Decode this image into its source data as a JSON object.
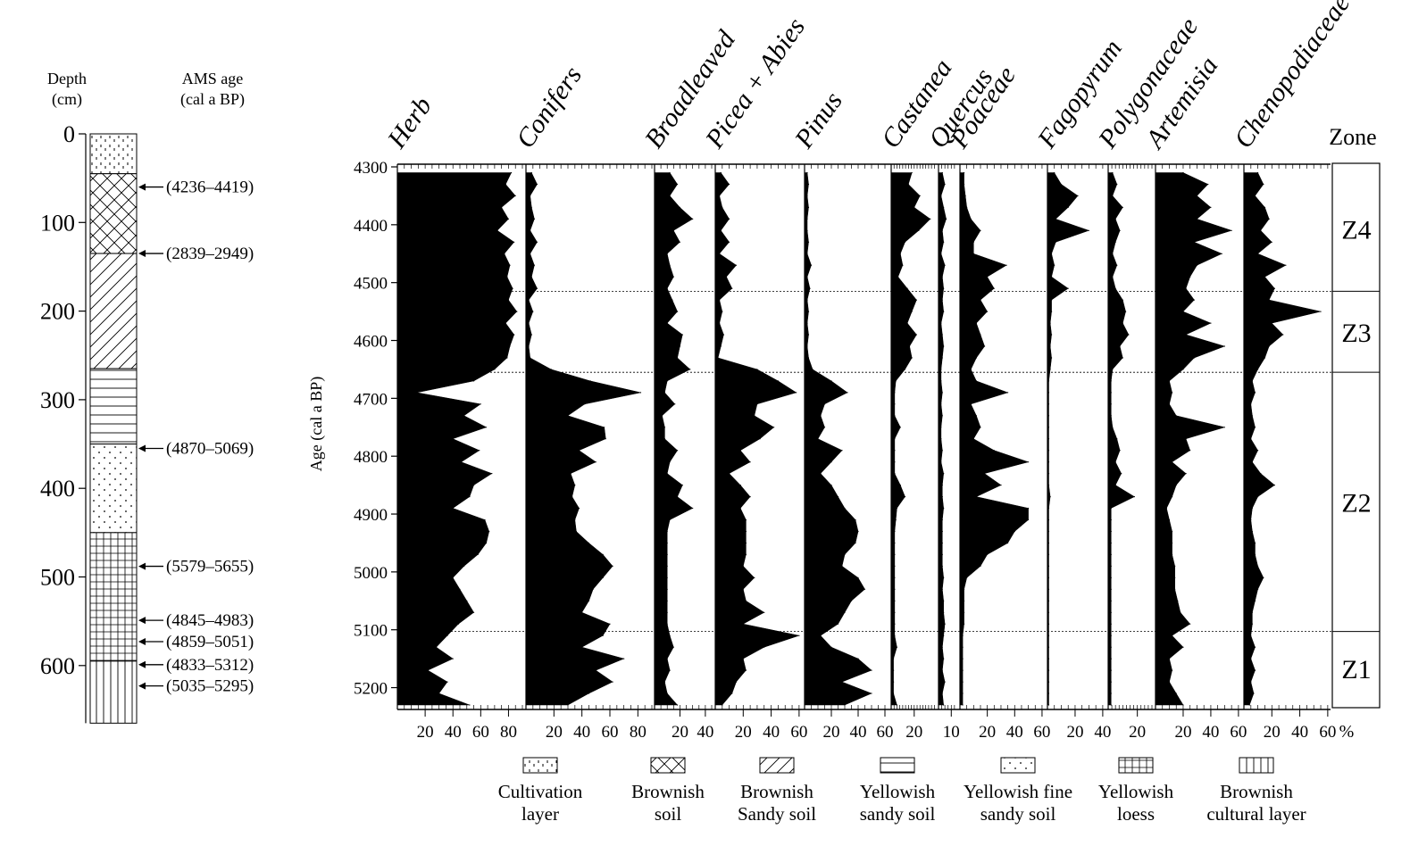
{
  "chart_data": {
    "type": "area",
    "stratigraphy": {
      "depth_label": "Depth",
      "depth_unit": "(cm)",
      "age_label": "AMS age",
      "age_unit": "(cal a BP)",
      "depth_ticks": [
        0,
        100,
        200,
        300,
        400,
        500,
        600
      ],
      "layers": [
        {
          "top": 0,
          "bottom": 45,
          "type": "cultivation"
        },
        {
          "top": 45,
          "bottom": 135,
          "type": "brownish-soil"
        },
        {
          "top": 135,
          "bottom": 265,
          "type": "brownish-sandy"
        },
        {
          "top": 265,
          "bottom": 350,
          "type": "yellowish-sandy"
        },
        {
          "top": 350,
          "bottom": 450,
          "type": "yellowish-fine-sandy"
        },
        {
          "top": 450,
          "bottom": 595,
          "type": "yellowish-loess"
        },
        {
          "top": 595,
          "bottom": 665,
          "type": "brownish-cultural"
        }
      ],
      "dates": [
        {
          "depth": 60,
          "label": "(4236–4419)"
        },
        {
          "depth": 135,
          "label": "(2839–2949)"
        },
        {
          "depth": 355,
          "label": "(4870–5069)"
        },
        {
          "depth": 488,
          "label": "(5579–5655)"
        },
        {
          "depth": 549,
          "label": "(4845–4983)"
        },
        {
          "depth": 573,
          "label": "(4859–5051)"
        },
        {
          "depth": 599,
          "label": "(4833–5312)"
        },
        {
          "depth": 623,
          "label": "(5035–5295)"
        }
      ]
    },
    "ylabel": "Age (cal a BP)",
    "y_ticks": [
      4300,
      4400,
      4500,
      4600,
      4700,
      4800,
      4900,
      5000,
      5100,
      5200
    ],
    "ylim": [
      4300,
      5230
    ],
    "unit": "%",
    "zone_title": "Zone",
    "zone_boundaries": [
      4515,
      4655,
      5103
    ],
    "zones": [
      {
        "name": "Z4",
        "from": 4300,
        "to": 4515
      },
      {
        "name": "Z3",
        "from": 4515,
        "to": 4655
      },
      {
        "name": "Z2",
        "from": 4655,
        "to": 5103
      },
      {
        "name": "Z1",
        "from": 5103,
        "to": 5230
      }
    ],
    "ages": [
      4310,
      4330,
      4350,
      4370,
      4390,
      4410,
      4430,
      4450,
      4470,
      4490,
      4510,
      4530,
      4550,
      4570,
      4590,
      4610,
      4630,
      4650,
      4670,
      4690,
      4710,
      4730,
      4750,
      4770,
      4790,
      4810,
      4830,
      4850,
      4870,
      4890,
      4910,
      4930,
      4950,
      4970,
      4990,
      5010,
      5030,
      5050,
      5070,
      5090,
      5110,
      5130,
      5150,
      5170,
      5190,
      5210,
      5230
    ],
    "series": [
      {
        "name": "Herb",
        "ticks": [
          "20",
          "40",
          "60",
          "80"
        ],
        "max": 90,
        "values": [
          82,
          78,
          85,
          75,
          80,
          72,
          84,
          77,
          81,
          79,
          83,
          80,
          86,
          78,
          84,
          81,
          79,
          70,
          55,
          14,
          60,
          48,
          64,
          40,
          59,
          46,
          68,
          55,
          52,
          40,
          63,
          66,
          64,
          58,
          48,
          40,
          45,
          50,
          55,
          44,
          36,
          28,
          40,
          22,
          36,
          30,
          52
        ]
      },
      {
        "name": "Conifers",
        "ticks": [
          "20",
          "40",
          "60",
          "80"
        ],
        "max": 90,
        "values": [
          4,
          8,
          3,
          4,
          6,
          3,
          8,
          3,
          6,
          4,
          8,
          2,
          5,
          2,
          4,
          2,
          3,
          18,
          46,
          82,
          42,
          30,
          56,
          57,
          38,
          50,
          32,
          35,
          33,
          38,
          35,
          36,
          45,
          55,
          62,
          55,
          48,
          45,
          40,
          60,
          55,
          40,
          70,
          50,
          62,
          45,
          30
        ]
      },
      {
        "name": "Broadleaved",
        "ticks": [
          "20",
          "40"
        ],
        "max": 45,
        "values": [
          12,
          18,
          12,
          20,
          30,
          15,
          20,
          10,
          12,
          15,
          10,
          14,
          18,
          10,
          22,
          20,
          18,
          28,
          10,
          8,
          16,
          6,
          8,
          8,
          18,
          12,
          10,
          22,
          18,
          30,
          12,
          10,
          10,
          10,
          10,
          10,
          10,
          10,
          10,
          10,
          12,
          15,
          10,
          12,
          8,
          10,
          18
        ]
      },
      {
        "name": "Picea + Abies",
        "ticks": [
          "20",
          "40",
          "60"
        ],
        "max": 62,
        "values": [
          4,
          10,
          3,
          5,
          10,
          4,
          10,
          3,
          15,
          8,
          12,
          3,
          5,
          3,
          6,
          4,
          2,
          30,
          45,
          58,
          30,
          28,
          42,
          32,
          18,
          25,
          10,
          18,
          25,
          18,
          22,
          22,
          22,
          22,
          20,
          28,
          20,
          22,
          35,
          20,
          60,
          35,
          20,
          22,
          15,
          12,
          5
        ]
      },
      {
        "name": "Pinus",
        "ticks": [
          "20",
          "40",
          "60"
        ],
        "max": 62,
        "values": [
          2,
          3,
          2,
          3,
          2,
          2,
          3,
          2,
          5,
          2,
          4,
          2,
          3,
          2,
          3,
          2,
          3,
          6,
          20,
          32,
          15,
          12,
          15,
          10,
          28,
          20,
          12,
          20,
          25,
          30,
          38,
          40,
          38,
          30,
          28,
          40,
          45,
          35,
          30,
          25,
          12,
          20,
          40,
          50,
          28,
          50,
          30
        ]
      },
      {
        "name": "Castanea",
        "ticks": [
          "20"
        ],
        "max": 38,
        "values": [
          18,
          15,
          25,
          20,
          34,
          24,
          12,
          8,
          10,
          6,
          14,
          22,
          18,
          14,
          22,
          16,
          18,
          12,
          4,
          3,
          3,
          3,
          8,
          3,
          3,
          3,
          3,
          8,
          12,
          5,
          4,
          3,
          3,
          3,
          3,
          3,
          3,
          3,
          3,
          3,
          3,
          5,
          2,
          2,
          2,
          2,
          5
        ]
      },
      {
        "name": "Quercus",
        "ticks": [
          "10"
        ],
        "max": 14,
        "values": [
          3,
          5,
          2,
          4,
          6,
          3,
          4,
          2,
          5,
          3,
          4,
          3,
          4,
          2,
          3,
          4,
          3,
          2,
          2,
          3,
          2,
          3,
          2,
          2,
          3,
          2,
          4,
          3,
          3,
          4,
          3,
          3,
          3,
          3,
          3,
          4,
          3,
          4,
          4,
          5,
          4,
          3,
          4,
          3,
          5,
          3,
          4
        ]
      },
      {
        "name": "Poaceae",
        "ticks": [
          "20",
          "40",
          "60"
        ],
        "max": 62,
        "values": [
          3,
          3,
          4,
          5,
          8,
          15,
          10,
          10,
          34,
          20,
          25,
          15,
          20,
          12,
          15,
          18,
          12,
          8,
          12,
          35,
          8,
          12,
          15,
          10,
          25,
          50,
          18,
          30,
          12,
          50,
          50,
          40,
          35,
          20,
          15,
          5,
          3,
          3,
          3,
          3,
          2,
          2,
          2,
          2,
          2,
          2,
          2
        ]
      },
      {
        "name": "Fagopyrum",
        "ticks": [
          "20",
          "40"
        ],
        "max": 42,
        "values": [
          5,
          10,
          22,
          15,
          6,
          30,
          6,
          3,
          5,
          3,
          15,
          3,
          3,
          2,
          3,
          2,
          3,
          2,
          1,
          1,
          1,
          1,
          1,
          1,
          1,
          1,
          1,
          1,
          2,
          1,
          1,
          1,
          1,
          1,
          1,
          1,
          1,
          1,
          1,
          1,
          1,
          1,
          1,
          1,
          1,
          1,
          1
        ]
      },
      {
        "name": "Polygonaceae",
        "ticks": [
          "20"
        ],
        "max": 30,
        "values": [
          3,
          6,
          3,
          10,
          5,
          8,
          5,
          3,
          6,
          3,
          5,
          10,
          12,
          10,
          14,
          8,
          10,
          3,
          2,
          2,
          2,
          2,
          3,
          6,
          8,
          5,
          9,
          5,
          18,
          2,
          2,
          2,
          2,
          2,
          2,
          2,
          2,
          2,
          2,
          2,
          2,
          2,
          2,
          2,
          2,
          2,
          2
        ]
      },
      {
        "name": "Artemisia",
        "ticks": [
          "20",
          "40",
          "60"
        ],
        "max": 62,
        "values": [
          20,
          38,
          30,
          40,
          30,
          55,
          28,
          48,
          30,
          25,
          22,
          28,
          20,
          40,
          22,
          50,
          28,
          20,
          10,
          12,
          10,
          15,
          50,
          22,
          25,
          12,
          22,
          15,
          12,
          8,
          10,
          12,
          12,
          12,
          14,
          14,
          14,
          16,
          18,
          25,
          12,
          20,
          10,
          12,
          10,
          15,
          20
        ]
      },
      {
        "name": "Chenopodiaceae",
        "ticks": [
          "20",
          "40",
          "60"
        ],
        "max": 62,
        "values": [
          10,
          14,
          8,
          15,
          18,
          12,
          20,
          10,
          30,
          15,
          22,
          18,
          55,
          20,
          28,
          18,
          15,
          10,
          6,
          8,
          5,
          6,
          8,
          5,
          10,
          6,
          12,
          22,
          10,
          6,
          5,
          6,
          8,
          8,
          10,
          14,
          10,
          8,
          6,
          6,
          5,
          8,
          5,
          8,
          5,
          7,
          4
        ]
      }
    ],
    "legend": [
      {
        "pattern": "cultivation",
        "line1": "Cultivation",
        "line2": "layer"
      },
      {
        "pattern": "brownish-soil",
        "line1": "Brownish",
        "line2": "soil"
      },
      {
        "pattern": "brownish-sandy",
        "line1": "Brownish",
        "line2": "Sandy soil"
      },
      {
        "pattern": "yellowish-sandy",
        "line1": "Yellowish",
        "line2": "sandy soil"
      },
      {
        "pattern": "yellowish-fine-sandy",
        "line1": "Yellowish fine",
        "line2": "sandy soil"
      },
      {
        "pattern": "yellowish-loess",
        "line1": "Yellowish",
        "line2": "loess"
      },
      {
        "pattern": "brownish-cultural",
        "line1": "Brownish",
        "line2": "cultural layer"
      }
    ]
  }
}
